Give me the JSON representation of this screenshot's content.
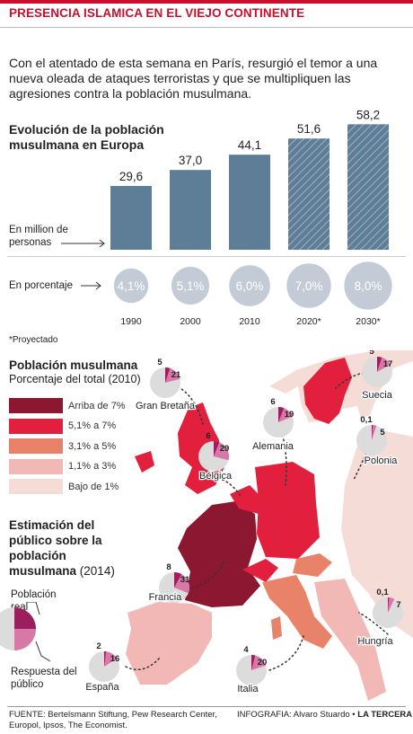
{
  "header": {
    "title": "PRESENCIA ISLAMICA EN EL VIEJO CONTINENTE"
  },
  "intro": "Con el atentado de esta semana en París, resurgió el temor a una nueva oleada de ataques terroristas y que se multipliquen las agresiones contra la población musulmana.",
  "evolution": {
    "title": "Evolución de la población musulmana en Europa",
    "unit_label": "En million de personas",
    "pct_label": "En porcentaje",
    "note": "*Proyectado"
  },
  "colors": {
    "accent": "#c8102e",
    "bar": "#5e7d96",
    "bubble": "#c3ccd6",
    "projected": "#5e7d96"
  },
  "chart_data": {
    "type": "bar",
    "categories": [
      "1990",
      "2000",
      "2010",
      "2020*",
      "2030*"
    ],
    "series": [
      {
        "values": [
          29.6,
          37.0,
          44.1,
          51.6,
          58.2
        ]
      }
    ],
    "value_labels": [
      "29,6",
      "37,0",
      "44,1",
      "51,6",
      "58,2"
    ],
    "percentages": [
      4.1,
      5.1,
      6.0,
      7.0,
      8.0
    ],
    "percentage_labels": [
      "4,1%",
      "5,1%",
      "6,0%",
      "7,0%",
      "8,0%"
    ],
    "projected": [
      false,
      false,
      false,
      true,
      true
    ],
    "ylim": [
      0,
      60
    ],
    "xlabel": "",
    "ylabel": ""
  },
  "map": {
    "title": "Población musulmana",
    "subtitle": "Porcentaje del total (2010)",
    "legend": [
      {
        "label": "Arriba de 7%",
        "color": "#8c1730"
      },
      {
        "label": "5,1% a 7%",
        "color": "#e21f3c"
      },
      {
        "label": "3,1% a 5%",
        "color": "#e8836a"
      },
      {
        "label": "1,1% a 3%",
        "color": "#f1b8b6"
      },
      {
        "label": "Bajo de 1%",
        "color": "#f6dcd7"
      }
    ],
    "estimate_title": "Estimación del público sobre la población musulmana",
    "estimate_year": "(2014)",
    "key_real": "Población real",
    "key_perceived": "Respuesta del público",
    "countries": [
      {
        "name": "Gran Bretaña",
        "real": 5,
        "perceived": 21,
        "real_label": "5",
        "perceived_label": "21"
      },
      {
        "name": "Suecia",
        "real": 5,
        "perceived": 17,
        "real_label": "5",
        "perceived_label": "17"
      },
      {
        "name": "Alemania",
        "real": 6,
        "perceived": 19,
        "real_label": "6",
        "perceived_label": "19"
      },
      {
        "name": "Bélgica",
        "real": 6,
        "perceived": 29,
        "real_label": "6",
        "perceived_label": "29"
      },
      {
        "name": "Polonia",
        "real": 0.1,
        "perceived": 5,
        "real_label": "0,1",
        "perceived_label": "5"
      },
      {
        "name": "Francia",
        "real": 8,
        "perceived": 31,
        "real_label": "8",
        "perceived_label": "31"
      },
      {
        "name": "Hungría",
        "real": 0.1,
        "perceived": 7,
        "real_label": "0,1",
        "perceived_label": "7"
      },
      {
        "name": "España",
        "real": 2,
        "perceived": 16,
        "real_label": "2",
        "perceived_label": "16"
      },
      {
        "name": "Italia",
        "real": 4,
        "perceived": 20,
        "real_label": "4",
        "perceived_label": "20"
      }
    ]
  },
  "footer": {
    "source": "FUENTE: Bertelsmann Stiftung, Pew Research Center, Europol, Ipsos, The Economist.",
    "credit_prefix": "INFOGRAFIA: Alvaro Stuardo •",
    "credit_brand": "LA TERCERA"
  }
}
